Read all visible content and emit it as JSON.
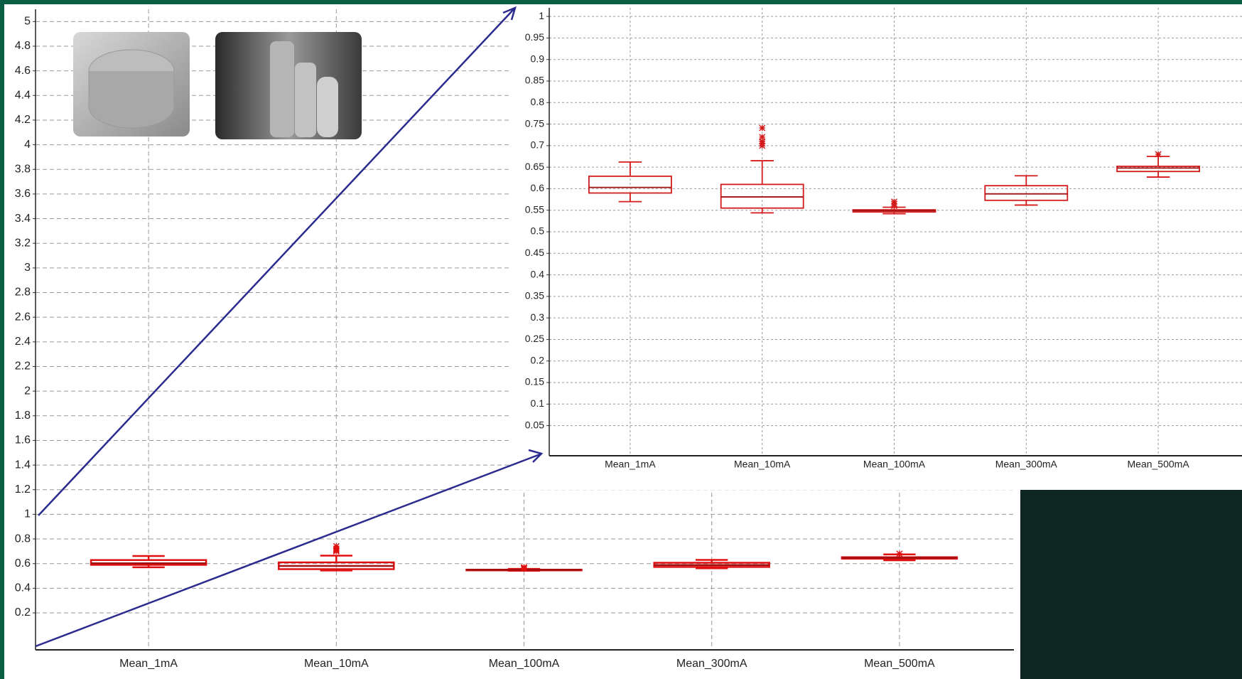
{
  "chart_data": [
    {
      "type": "box",
      "color": "#e01010",
      "categories": [
        "Mean_1mA",
        "Mean_10mA",
        "Mean_100mA",
        "Mean_300mA",
        "Mean_500mA"
      ],
      "boxes": [
        {
          "low": 0.57,
          "q1": 0.59,
          "median": 0.603,
          "q3": 0.629,
          "high": 0.662,
          "outliers": []
        },
        {
          "low": 0.544,
          "q1": 0.555,
          "median": 0.581,
          "q3": 0.61,
          "high": 0.665,
          "outliers": [
            0.741,
            0.72,
            0.71,
            0.705,
            0.7
          ]
        },
        {
          "low": 0.542,
          "q1": 0.546,
          "median": 0.549,
          "q3": 0.551,
          "high": 0.557,
          "outliers": [
            0.57,
            0.565,
            0.56
          ]
        },
        {
          "low": 0.562,
          "q1": 0.573,
          "median": 0.588,
          "q3": 0.607,
          "high": 0.63,
          "outliers": []
        },
        {
          "low": 0.627,
          "q1": 0.64,
          "median": 0.648,
          "q3": 0.652,
          "high": 0.675,
          "outliers": [
            0.68
          ]
        }
      ],
      "ylim": [
        -0.1,
        5.1
      ],
      "yticks": [
        0.2,
        0.4,
        0.6,
        0.8,
        1,
        1.2,
        1.4,
        1.6,
        1.8,
        2,
        2.2,
        2.4,
        2.6,
        2.8,
        3,
        3.2,
        3.4,
        3.6,
        3.8,
        4,
        4.2,
        4.4,
        4.6,
        4.8,
        5
      ],
      "grid": true
    },
    {
      "type": "box",
      "color": "#d41a1a",
      "categories": [
        "Mean_1mA",
        "Mean_10mA",
        "Mean_100mA",
        "Mean_300mA",
        "Mean_500mA"
      ],
      "boxes": [
        {
          "low": 0.57,
          "q1": 0.59,
          "median": 0.603,
          "q3": 0.629,
          "high": 0.662,
          "outliers": []
        },
        {
          "low": 0.544,
          "q1": 0.555,
          "median": 0.581,
          "q3": 0.61,
          "high": 0.665,
          "outliers": [
            0.741,
            0.72,
            0.71,
            0.705,
            0.7
          ]
        },
        {
          "low": 0.542,
          "q1": 0.546,
          "median": 0.549,
          "q3": 0.551,
          "high": 0.557,
          "outliers": [
            0.57,
            0.565,
            0.56
          ]
        },
        {
          "low": 0.562,
          "q1": 0.573,
          "median": 0.588,
          "q3": 0.607,
          "high": 0.63,
          "outliers": []
        },
        {
          "low": 0.627,
          "q1": 0.64,
          "median": 0.648,
          "q3": 0.652,
          "high": 0.675,
          "outliers": [
            0.68
          ]
        }
      ],
      "ylim": [
        -0.02,
        1.02
      ],
      "yticks": [
        0.05,
        0.1,
        0.15,
        0.2,
        0.25,
        0.3,
        0.35,
        0.4,
        0.45,
        0.5,
        0.55,
        0.6,
        0.65,
        0.7,
        0.75,
        0.8,
        0.85,
        0.9,
        0.95,
        1
      ],
      "grid": true
    }
  ]
}
